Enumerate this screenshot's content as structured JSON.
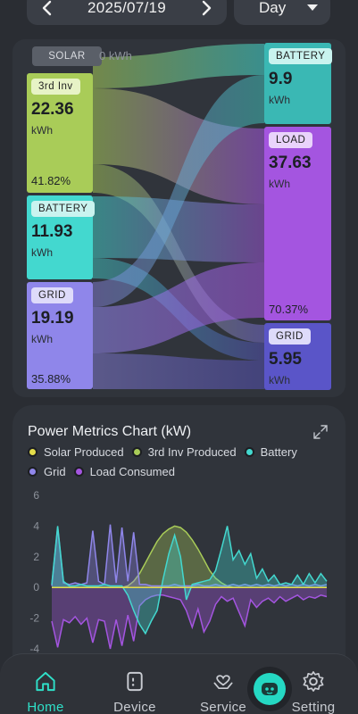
{
  "header": {
    "date": "2025/07/19",
    "period": "Day"
  },
  "colors": {
    "solar": "#e4dd4a",
    "third_inv": "#a9cc58",
    "battery": "#43d8cf",
    "grid": "#8f86ea",
    "load": "#a455e0",
    "accent": "#2fe0c8"
  },
  "sankey": {
    "solar": {
      "label": "SOLAR",
      "value": "0 kWh"
    },
    "sources": [
      {
        "label": "3rd Inv",
        "value": "22.36",
        "unit": "kWh",
        "percent": "41.82%"
      },
      {
        "label": "BATTERY",
        "value": "11.93",
        "unit": "kWh",
        "percent": ""
      },
      {
        "label": "GRID",
        "value": "19.19",
        "unit": "kWh",
        "percent": "35.88%"
      }
    ],
    "targets": [
      {
        "label": "BATTERY",
        "value": "9.9",
        "unit": "kWh",
        "percent": ""
      },
      {
        "label": "LOAD",
        "value": "37.63",
        "unit": "kWh",
        "percent": "70.37%"
      },
      {
        "label": "GRID",
        "value": "5.95",
        "unit": "kWh",
        "percent": ""
      }
    ]
  },
  "chart": {
    "title": "Power Metrics Chart (kW)",
    "legend": [
      {
        "name": "Solar Produced",
        "color": "#e4dd4a"
      },
      {
        "name": "3rd Inv Produced",
        "color": "#a9cc58"
      },
      {
        "name": "Battery",
        "color": "#43d8cf"
      },
      {
        "name": "Grid",
        "color": "#8f86ea"
      },
      {
        "name": "Load Consumed",
        "color": "#a455e0"
      }
    ]
  },
  "chart_data": {
    "type": "area",
    "title": "Power Metrics Chart (kW)",
    "xlabel": "",
    "ylabel": "",
    "ylim": [
      -4,
      6
    ],
    "yticks": [
      6,
      4,
      2,
      0,
      -2,
      -4
    ],
    "grid": false,
    "legend_position": "top",
    "x": [
      0,
      1,
      2,
      3,
      4,
      5,
      6,
      7,
      8,
      9,
      10,
      11,
      12,
      13,
      14,
      15,
      16,
      17,
      18,
      19,
      20,
      21,
      22,
      23,
      24,
      25,
      26,
      27,
      28,
      29,
      30,
      31,
      32,
      33,
      34,
      35,
      36,
      37,
      38,
      39,
      40,
      41,
      42,
      43,
      44,
      45,
      46,
      47
    ],
    "series": [
      {
        "name": "Solar Produced",
        "values": [
          0,
          0,
          0,
          0,
          0,
          0,
          0,
          0,
          0,
          0,
          0,
          0,
          0,
          0,
          0,
          0,
          0,
          0,
          0,
          0,
          0,
          0,
          0,
          0,
          0,
          0,
          0,
          0,
          0,
          0,
          0,
          0,
          0,
          0,
          0,
          0,
          0,
          0,
          0,
          0,
          0,
          0,
          0,
          0,
          0,
          0,
          0,
          0
        ]
      },
      {
        "name": "3rd Inv Produced",
        "values": [
          0,
          0,
          0,
          0,
          0,
          0,
          0,
          0,
          0,
          0,
          0,
          0,
          0,
          0.1,
          0.4,
          0.9,
          1.6,
          2.3,
          3.0,
          3.5,
          3.8,
          4.0,
          3.9,
          3.6,
          3.1,
          2.5,
          1.8,
          1.1,
          0.6,
          0.3,
          0.1,
          0,
          0,
          0,
          0,
          0,
          0,
          0,
          0,
          0,
          0,
          0,
          0,
          0,
          0,
          0,
          0,
          0
        ]
      },
      {
        "name": "Battery",
        "values": [
          0.2,
          4.0,
          0.4,
          0.1,
          0.1,
          0.2,
          0.1,
          0.1,
          0.1,
          0.2,
          0.1,
          0.1,
          0.1,
          -0.5,
          -1.5,
          -2.4,
          -3.0,
          -2.2,
          -1.5,
          0.5,
          2.2,
          3.4,
          2.0,
          -0.8,
          0.2,
          0.3,
          0.4,
          0.5,
          1.1,
          2.5,
          4.0,
          1.8,
          2.4,
          1.5,
          2.2,
          0.6,
          1.2,
          0.4,
          0.8,
          0.2,
          0.3,
          0.2,
          0.8,
          0.2,
          0.9,
          0.3,
          0.9,
          0.4
        ]
      },
      {
        "name": "Grid",
        "values": [
          0.1,
          3.9,
          0.3,
          0.2,
          0.3,
          0.2,
          0.3,
          3.7,
          0.4,
          0.2,
          4.1,
          0.3,
          3.9,
          0.4,
          3.6,
          0.2,
          0.2,
          0.1,
          0.1,
          0.1,
          0.1,
          0.2,
          0.1,
          0.1,
          0.1,
          0.2,
          0.1,
          0.1,
          0.2,
          0.1,
          0.1,
          0.2,
          0.1,
          0.2,
          0.1,
          0.2,
          0.1,
          0.2,
          0.1,
          0.2,
          0.1,
          0.2,
          0.1,
          0.2,
          0.1,
          0.2,
          0.1,
          0.2
        ]
      },
      {
        "name": "Load Consumed",
        "values": [
          -2.2,
          -3.9,
          -2.1,
          -2.3,
          -1.9,
          -2.4,
          -2.0,
          -3.6,
          -2.1,
          -2.2,
          -4.0,
          -2.1,
          -3.8,
          -1.8,
          -3.5,
          -1.2,
          -0.8,
          -0.6,
          -0.5,
          -0.5,
          -0.6,
          -0.7,
          -0.8,
          -1.5,
          -2.6,
          -1.4,
          -2.9,
          -2.2,
          -1.1,
          -0.6,
          -0.9,
          -0.7,
          -1.6,
          -2.5,
          -0.8,
          -1.3,
          -0.9,
          -0.7,
          -1.0,
          -0.6,
          -0.9,
          -0.7,
          -0.5,
          -0.8,
          -0.6,
          -0.7,
          -0.5,
          -0.6
        ]
      }
    ]
  },
  "nav": {
    "items": [
      {
        "label": "Home",
        "active": true
      },
      {
        "label": "Device",
        "active": false
      },
      {
        "label": "Service",
        "active": false
      },
      {
        "label": "Setting",
        "active": false
      }
    ]
  }
}
